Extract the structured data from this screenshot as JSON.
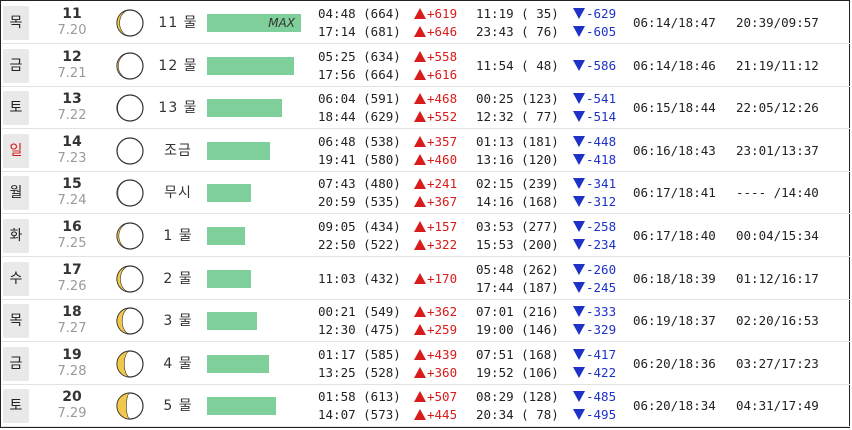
{
  "rows": [
    {
      "weekday": "목",
      "date_num": "11",
      "date_md": "7.20",
      "phase": 0.9,
      "mul": "11 물",
      "bar": 1.0,
      "max_label": "MAX",
      "high": [
        "04:48 (664)",
        "17:14 (681)"
      ],
      "high_diff": [
        "+619",
        "+646"
      ],
      "low": [
        "11:19 ( 35)",
        "23:43 ( 76)"
      ],
      "low_diff": [
        "-629",
        "-605"
      ],
      "sun": "06:14/18:47",
      "moonrs": "20:39/09:57",
      "sunday": false
    },
    {
      "weekday": "금",
      "date_num": "12",
      "date_md": "7.21",
      "phase": 0.95,
      "mul": "12 물",
      "bar": 0.93,
      "high": [
        "05:25 (634)",
        "17:56 (664)"
      ],
      "high_diff": [
        "+558",
        "+616"
      ],
      "low": [
        "11:54 ( 48)"
      ],
      "low_diff": [
        "-586"
      ],
      "sun": "06:14/18:46",
      "moonrs": "21:19/11:12",
      "sunday": false
    },
    {
      "weekday": "토",
      "date_num": "13",
      "date_md": "7.22",
      "phase": 0.98,
      "mul": "13 물",
      "bar": 0.8,
      "high": [
        "06:04 (591)",
        "18:44 (629)"
      ],
      "high_diff": [
        "+468",
        "+552"
      ],
      "low": [
        "00:25 (123)",
        "12:32 ( 77)"
      ],
      "low_diff": [
        "-541",
        "-514"
      ],
      "sun": "06:15/18:44",
      "moonrs": "22:05/12:26",
      "sunday": false
    },
    {
      "weekday": "일",
      "date_num": "14",
      "date_md": "7.23",
      "phase": 0.99,
      "mul": "조금",
      "bar": 0.67,
      "high": [
        "06:48 (538)",
        "19:41 (580)"
      ],
      "high_diff": [
        "+357",
        "+460"
      ],
      "low": [
        "01:13 (181)",
        "13:16 (120)"
      ],
      "low_diff": [
        "-448",
        "-418"
      ],
      "sun": "06:16/18:43",
      "moonrs": "23:01/13:37",
      "sunday": true
    },
    {
      "weekday": "월",
      "date_num": "15",
      "date_md": "7.24",
      "phase": 0.97,
      "mul": "무시",
      "bar": 0.47,
      "high": [
        "07:43 (480)",
        "20:59 (535)"
      ],
      "high_diff": [
        "+241",
        "+367"
      ],
      "low": [
        "02:15 (239)",
        "14:16 (168)"
      ],
      "low_diff": [
        "-341",
        "-312"
      ],
      "sun": "06:17/18:41",
      "moonrs": "---- /14:40",
      "sunday": false
    },
    {
      "weekday": "화",
      "date_num": "16",
      "date_md": "7.25",
      "phase": 0.93,
      "mul": "1 물",
      "bar": 0.4,
      "high": [
        "09:05 (434)",
        "22:50 (522)"
      ],
      "high_diff": [
        "+157",
        "+322"
      ],
      "low": [
        "03:53 (277)",
        "15:53 (200)"
      ],
      "low_diff": [
        "-258",
        "-234"
      ],
      "sun": "06:17/18:40",
      "moonrs": "00:04/15:34",
      "sunday": false
    },
    {
      "weekday": "수",
      "date_num": "17",
      "date_md": "7.26",
      "phase": 0.87,
      "mul": "2 물",
      "bar": 0.47,
      "high": [
        "11:03 (432)"
      ],
      "high_diff": [
        "+170"
      ],
      "low": [
        "05:48 (262)",
        "17:44 (187)"
      ],
      "low_diff": [
        "-260",
        "-245"
      ],
      "sun": "06:18/18:39",
      "moonrs": "01:12/16:17",
      "sunday": false
    },
    {
      "weekday": "목",
      "date_num": "18",
      "date_md": "7.27",
      "phase": 0.8,
      "mul": "3 물",
      "bar": 0.53,
      "high": [
        "00:21 (549)",
        "12:30 (475)"
      ],
      "high_diff": [
        "+362",
        "+259"
      ],
      "low": [
        "07:01 (216)",
        "19:00 (146)"
      ],
      "low_diff": [
        "-333",
        "-329"
      ],
      "sun": "06:19/18:37",
      "moonrs": "02:20/16:53",
      "sunday": false
    },
    {
      "weekday": "금",
      "date_num": "19",
      "date_md": "7.28",
      "phase": 0.72,
      "mul": "4 물",
      "bar": 0.66,
      "high": [
        "01:17 (585)",
        "13:25 (528)"
      ],
      "high_diff": [
        "+439",
        "+360"
      ],
      "low": [
        "07:51 (168)",
        "19:52 (106)"
      ],
      "low_diff": [
        "-417",
        "-422"
      ],
      "sun": "06:20/18:36",
      "moonrs": "03:27/17:23",
      "sunday": false
    },
    {
      "weekday": "토",
      "date_num": "20",
      "date_md": "7.29",
      "phase": 0.64,
      "mul": "5 물",
      "bar": 0.73,
      "high": [
        "01:58 (613)",
        "14:07 (573)"
      ],
      "high_diff": [
        "+507",
        "+445"
      ],
      "low": [
        "08:29 (128)",
        "20:34 ( 78)"
      ],
      "low_diff": [
        "-485",
        "-495"
      ],
      "sun": "06:20/18:34",
      "moonrs": "04:31/17:49",
      "sunday": false
    }
  ],
  "colors": {
    "bar": "#7fcf9a",
    "moon_yellow": "#f2c84b",
    "up": "#d81b1b",
    "down": "#1e32c8",
    "sunday": "#d11919"
  }
}
